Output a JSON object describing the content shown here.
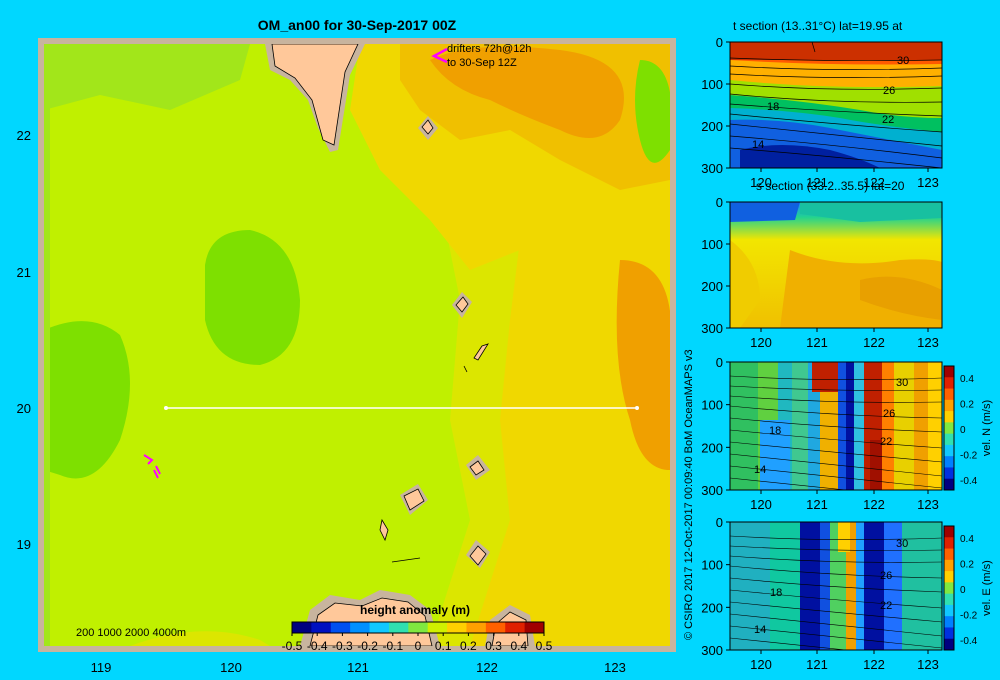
{
  "colors": {
    "background": "#00d7ff",
    "frame": "#c8b49e",
    "land": "#ffc89a",
    "track": "#ffffff",
    "drifter": "#ff00ff"
  },
  "map": {
    "title": "OM_an00 for 30-Sep-2017 00Z",
    "drifter_note_line1": "drifters 72h@12h",
    "drifter_note_line2": "to 30-Sep 12Z",
    "depth_legend": "200  1000  2000  4000m",
    "colorbar_title": "height anomaly (m)",
    "colorbar_ticks": [
      "-0.5",
      "-0.4",
      "-0.3",
      "-0.2",
      "-0.1",
      "0",
      "0.1",
      "0.2",
      "0.3",
      "0.4",
      "0.5"
    ],
    "xticks": [
      "119",
      "120",
      "121",
      "122",
      "123"
    ],
    "yticks": [
      "22",
      "21",
      "20",
      "19"
    ]
  },
  "credit": "© CSIRO 2017   12-Oct-2017 00:09:40 BoM OceanMAPS v3",
  "chart_data": [
    {
      "type": "heatmap",
      "title": "OM_an00 for 30-Sep-2017 00Z",
      "variable": "height anomaly (m)",
      "colorbar_range": [
        -0.5,
        0.5
      ],
      "xlim": [
        118.5,
        123.5
      ],
      "ylim": [
        18.2,
        22.7
      ],
      "section_line": {
        "lat": 20,
        "lon": [
          119.5,
          123.2
        ]
      }
    },
    {
      "type": "heatmap",
      "title": "t section (13..31°C) lat=19.95 at",
      "xticks": [
        "120",
        "121",
        "122",
        "123"
      ],
      "yticks": [
        "0",
        "100",
        "200",
        "300"
      ],
      "contour_labels": [
        "30",
        "26",
        "22",
        "18",
        "14"
      ]
    },
    {
      "type": "heatmap",
      "title": "s section (33.2..35.5) lat=20",
      "xticks": [
        "120",
        "121",
        "122",
        "123"
      ],
      "yticks": [
        "0",
        "100",
        "200",
        "300"
      ]
    },
    {
      "type": "heatmap",
      "colorbar_label": "vel. N (m/s)",
      "colorbar_ticks": [
        "0.4",
        "0.2",
        "0",
        "-0.2",
        "-0.4"
      ],
      "xticks": [
        "120",
        "121",
        "122",
        "123"
      ],
      "yticks": [
        "0",
        "100",
        "200",
        "300"
      ],
      "contour_labels": [
        "30",
        "26",
        "22",
        "18",
        "14"
      ]
    },
    {
      "type": "heatmap",
      "colorbar_label": "vel. E (m/s)",
      "colorbar_ticks": [
        "0.4",
        "0.2",
        "0",
        "-0.2",
        "-0.4"
      ],
      "xticks": [
        "120",
        "121",
        "122",
        "123"
      ],
      "yticks": [
        "0",
        "100",
        "200",
        "300"
      ],
      "contour_labels": [
        "30",
        "26",
        "22",
        "18",
        "14"
      ]
    }
  ]
}
